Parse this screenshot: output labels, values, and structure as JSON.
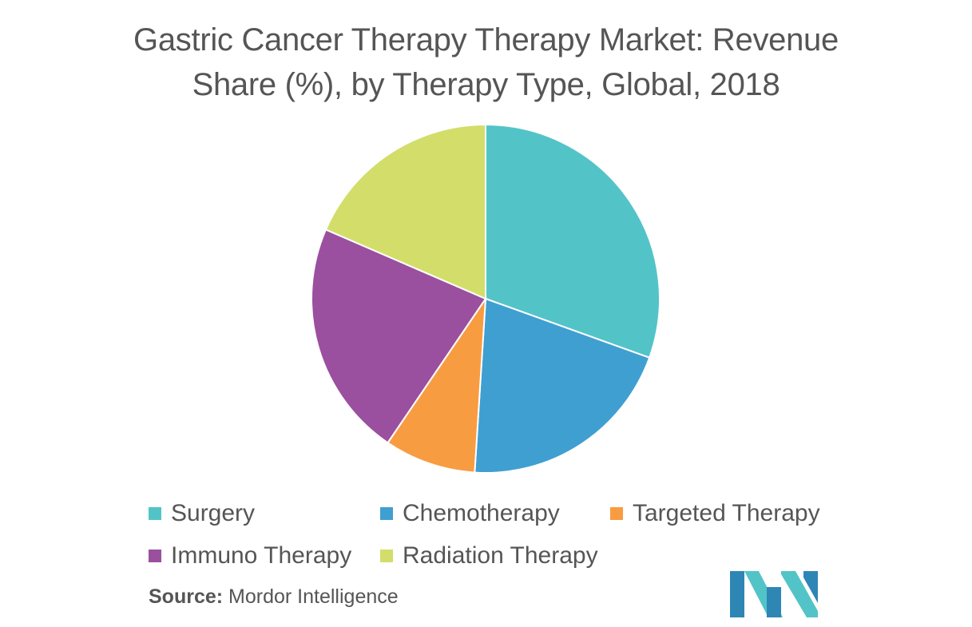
{
  "title_lines": [
    "Gastric Cancer Therapy Therapy Market: Revenue",
    "Share (%), by Therapy Type, Global, 2018"
  ],
  "chart_data": {
    "type": "pie",
    "title": "Gastric Cancer Therapy Therapy Market: Revenue Share (%), by Therapy Type, Global, 2018",
    "categories": [
      "Surgery",
      "Chemotherapy",
      "Targeted Therapy",
      "Immuno Therapy",
      "Radiation Therapy"
    ],
    "values": [
      30.5,
      20.5,
      8.5,
      22.0,
      18.5
    ],
    "colors": [
      "#52C4C8",
      "#3F9FD1",
      "#F89C42",
      "#9B4F9F",
      "#D2DE69"
    ],
    "start": "12 o'clock, clockwise",
    "legend_position": "bottom"
  },
  "legend": [
    {
      "label": "Surgery",
      "color": "#52C4C8"
    },
    {
      "label": "Chemotherapy",
      "color": "#3F9FD1"
    },
    {
      "label": "Targeted Therapy",
      "color": "#F89C42"
    },
    {
      "label": "Immuno Therapy",
      "color": "#9B4F9F"
    },
    {
      "label": "Radiation Therapy",
      "color": "#D2DE69"
    }
  ],
  "source": {
    "key": "Source:",
    "value": "Mordor Intelligence"
  },
  "logo": {
    "icon": "mordor-intelligence-logo",
    "colors": [
      "#2E86B5",
      "#52C4C8"
    ]
  }
}
